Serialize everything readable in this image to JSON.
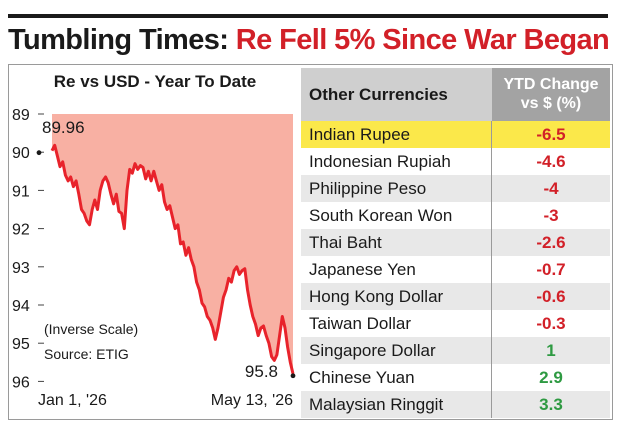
{
  "headline": {
    "part1": "Tumbling Times: ",
    "part2": "Re Fell 5% Since War Began"
  },
  "chart_data": {
    "type": "line",
    "title": "Re vs USD - Year To Date",
    "inverse_scale": true,
    "ylim": [
      89,
      96
    ],
    "y_ticks": [
      "89",
      "90",
      "91",
      "92",
      "93",
      "94",
      "95",
      "96"
    ],
    "x_labels": [
      "Jan 1, '26",
      "May 13, '26"
    ],
    "start": {
      "label": "89.96",
      "value": 89.96
    },
    "end": {
      "label": "95.8",
      "value": 95.8
    },
    "note": "(Inverse Scale)",
    "source": "Source: ETIG",
    "line_color": "#e8232b",
    "area_color": "#f8b0a3",
    "series": [
      {
        "values": [
          89.96,
          89.82,
          90.1,
          90.38,
          90.25,
          90.6,
          90.75,
          90.65,
          90.9,
          90.75,
          91.1,
          91.5,
          91.6,
          91.8,
          91.9,
          91.5,
          91.25,
          91.5,
          91.0,
          90.75,
          90.65,
          90.8,
          91.1,
          91.35,
          91.1,
          91.55,
          91.6,
          92.0,
          91.0,
          90.45,
          90.55,
          90.3,
          90.45,
          90.35,
          90.4,
          90.7,
          90.5,
          90.75,
          90.5,
          90.75,
          91.0,
          90.85,
          91.3,
          91.5,
          91.4,
          91.7,
          92.0,
          91.9,
          92.4,
          92.35,
          92.7,
          92.5,
          92.8,
          93.0,
          93.4,
          93.6,
          93.95,
          94.05,
          94.3,
          94.4,
          94.6,
          94.9,
          94.6,
          94.2,
          93.8,
          93.6,
          93.3,
          93.4,
          93.1,
          93.0,
          93.2,
          93.1,
          93.05,
          93.6,
          94.0,
          94.3,
          94.5,
          94.8,
          94.6,
          94.55,
          94.8,
          95.0,
          95.35,
          95.45,
          95.3,
          94.8,
          94.3,
          94.6,
          95.1,
          95.5,
          95.8
        ]
      }
    ]
  },
  "table": {
    "header_name": "Other Currencies",
    "header_change_line1": "YTD Change",
    "header_change_line2": "vs $ (%)",
    "colors": {
      "negative": "#d22028",
      "positive": "#2e9a42",
      "highlight": "#fbe84a",
      "stripe": "#e8e8e8"
    },
    "rows": [
      {
        "name": "Indian Rupee",
        "value": "-6.5"
      },
      {
        "name": "Indonesian Rupiah",
        "value": "-4.6"
      },
      {
        "name": "Philippine Peso",
        "value": "-4"
      },
      {
        "name": "South Korean Won",
        "value": "-3"
      },
      {
        "name": "Thai Baht",
        "value": "-2.6"
      },
      {
        "name": "Japanese Yen",
        "value": "-0.7"
      },
      {
        "name": "Hong Kong Dollar",
        "value": "-0.6"
      },
      {
        "name": "Taiwan Dollar",
        "value": "-0.3"
      },
      {
        "name": "Singapore Dollar",
        "value": "1"
      },
      {
        "name": "Chinese Yuan",
        "value": "2.9"
      },
      {
        "name": "Malaysian Ringgit",
        "value": "3.3"
      }
    ]
  }
}
